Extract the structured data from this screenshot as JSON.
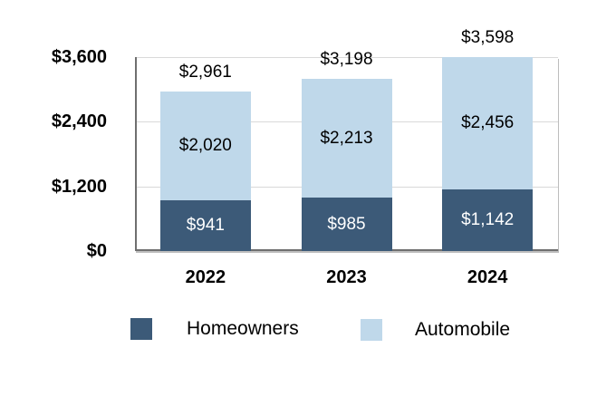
{
  "chart_data": {
    "type": "bar",
    "stacked": true,
    "categories": [
      "2022",
      "2023",
      "2024"
    ],
    "series": [
      {
        "name": "Homeowners",
        "color": "#3C5A78",
        "values": [
          941,
          985,
          1142
        ],
        "value_labels": [
          "$941",
          "$985",
          "$1,142"
        ],
        "label_color": "#ffffff"
      },
      {
        "name": "Automobile",
        "color": "#BFD8EA",
        "values": [
          2020,
          2213,
          2456
        ],
        "value_labels": [
          "$2,020",
          "$2,213",
          "$2,456"
        ],
        "label_color": "#000000"
      }
    ],
    "totals": [
      2961,
      3198,
      3598
    ],
    "total_labels": [
      "$2,961",
      "$3,198",
      "$3,598"
    ],
    "title": "",
    "xlabel": "",
    "ylabel": "",
    "ylim": [
      0,
      3600
    ],
    "yticks": [
      0,
      1200,
      2400,
      3600
    ],
    "ytick_labels": [
      "$0",
      "$1,200",
      "$2,400",
      "$3,600"
    ],
    "grid": true,
    "legend_position": "bottom"
  },
  "style": {
    "gridline_color": "#d9d9d9",
    "axis_color": "#6f6f6f",
    "background": "#ffffff",
    "text_color": "#000000"
  }
}
